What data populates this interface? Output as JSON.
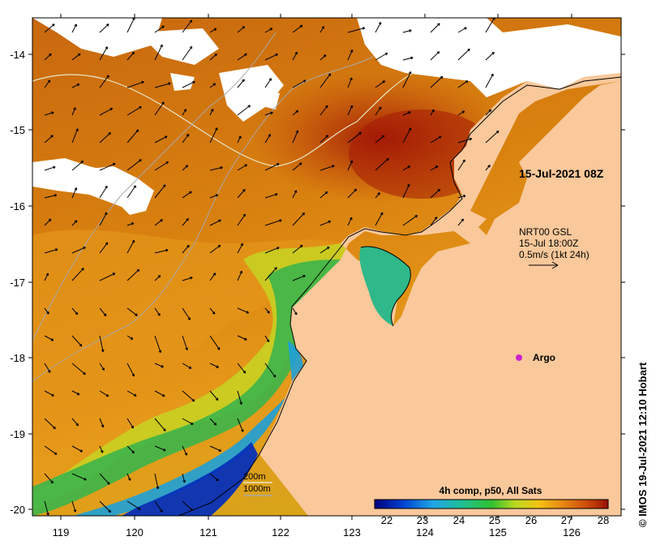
{
  "map": {
    "date_label": "15-Jul-2021 08Z",
    "currents_label_1": "NRT00 GSL",
    "currents_label_2": "15-Jul 18:00Z",
    "currents_label_3": "0.5m/s (1kt 24h)",
    "argo_label": "Argo",
    "side_credit": "© IMOS 19-Jul-2021 12:10 Hobart",
    "depth_200": "200m",
    "depth_1000": "1000m",
    "colorbar_title": "4h comp, p50, All Sats",
    "colorbar_ticks": [
      "22",
      "23",
      "24",
      "25",
      "26",
      "27",
      "28"
    ],
    "x_ticks": [
      "119",
      "120",
      "121",
      "122",
      "123",
      "124",
      "125",
      "126"
    ],
    "y_ticks": [
      "-14",
      "-15",
      "-16",
      "-17",
      "-18",
      "-19",
      "-20"
    ],
    "colors": {
      "land": "#f9c89b",
      "sst_warm": "#c15a0f",
      "sst_hot": "#a41a05",
      "sst_mid": "#e08915",
      "sst_cool": "#39b54a",
      "cloud": "#ffffff",
      "argo": "#cc22cc"
    }
  }
}
